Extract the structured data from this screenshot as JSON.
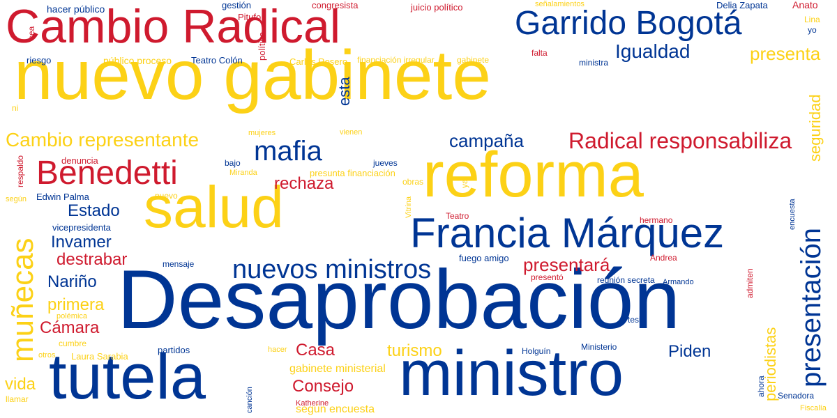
{
  "palette": {
    "red": "#cf1a2e",
    "yellow": "#fcd116",
    "blue": "#003594"
  },
  "words": [
    {
      "text": "Desaprobación",
      "color": "blue",
      "rotate": false
    },
    {
      "text": "nuevo gabinete",
      "color": "yellow",
      "rotate": false
    },
    {
      "text": "ministro",
      "color": "blue",
      "rotate": false
    },
    {
      "text": "reforma",
      "color": "yellow",
      "rotate": false
    },
    {
      "text": "tutela",
      "color": "blue",
      "rotate": false
    },
    {
      "text": "Cambio Radical",
      "color": "red",
      "rotate": false
    },
    {
      "text": "salud",
      "color": "yellow",
      "rotate": false
    },
    {
      "text": "Francia Márquez",
      "color": "blue",
      "rotate": false
    },
    {
      "text": "Garrido Bogotá",
      "color": "blue",
      "rotate": false
    },
    {
      "text": "Benedetti",
      "color": "red",
      "rotate": false
    },
    {
      "text": "presentación",
      "color": "blue",
      "rotate": true
    },
    {
      "text": "muñecas",
      "color": "yellow",
      "rotate": true
    },
    {
      "text": "mafia",
      "color": "blue",
      "rotate": false
    },
    {
      "text": "nuevos ministros",
      "color": "blue",
      "rotate": false
    },
    {
      "text": "Radical responsabiliza",
      "color": "red",
      "rotate": false
    },
    {
      "text": "Cambio representante",
      "color": "yellow",
      "rotate": false
    },
    {
      "text": "presentará",
      "color": "red",
      "rotate": false
    },
    {
      "text": "Igualdad",
      "color": "blue",
      "rotate": false
    },
    {
      "text": "presenta",
      "color": "yellow",
      "rotate": false
    },
    {
      "text": "campaña",
      "color": "blue",
      "rotate": false
    },
    {
      "text": "rechaza",
      "color": "red",
      "rotate": false
    },
    {
      "text": "Estado",
      "color": "blue",
      "rotate": false
    },
    {
      "text": "Invamer",
      "color": "blue",
      "rotate": false
    },
    {
      "text": "destrabar",
      "color": "red",
      "rotate": false
    },
    {
      "text": "Nariño",
      "color": "blue",
      "rotate": false
    },
    {
      "text": "primera",
      "color": "yellow",
      "rotate": false
    },
    {
      "text": "Cámara",
      "color": "red",
      "rotate": false
    },
    {
      "text": "Casa",
      "color": "red",
      "rotate": false
    },
    {
      "text": "turismo",
      "color": "yellow",
      "rotate": false
    },
    {
      "text": "Consejo",
      "color": "red",
      "rotate": false
    },
    {
      "text": "Piden",
      "color": "blue",
      "rotate": false
    },
    {
      "text": "periodistas",
      "color": "yellow",
      "rotate": true
    },
    {
      "text": "seguridad",
      "color": "yellow",
      "rotate": true
    },
    {
      "text": "esta",
      "color": "blue",
      "rotate": true
    },
    {
      "text": "vida",
      "color": "yellow",
      "rotate": false
    },
    {
      "text": "gabinete ministerial",
      "color": "yellow",
      "rotate": false
    },
    {
      "text": "según encuesta",
      "color": "yellow",
      "rotate": false
    },
    {
      "text": "Laura Sarabia",
      "color": "yellow",
      "rotate": false
    },
    {
      "text": "hacer público",
      "color": "blue",
      "rotate": false
    },
    {
      "text": "gestión",
      "color": "blue",
      "rotate": false
    },
    {
      "text": "congresista",
      "color": "red",
      "rotate": false
    },
    {
      "text": "juicio político",
      "color": "red",
      "rotate": false
    },
    {
      "text": "señalamientos",
      "color": "yellow",
      "rotate": false
    },
    {
      "text": "Delia Zapata",
      "color": "blue",
      "rotate": false
    },
    {
      "text": "Anato",
      "color": "red",
      "rotate": false
    },
    {
      "text": "Pitufo",
      "color": "red",
      "rotate": false
    },
    {
      "text": "sea",
      "color": "red",
      "rotate": true
    },
    {
      "text": "política",
      "color": "red",
      "rotate": true
    },
    {
      "text": "Lina",
      "color": "yellow",
      "rotate": false
    },
    {
      "text": "yo",
      "color": "blue",
      "rotate": false
    },
    {
      "text": "riesgo",
      "color": "blue",
      "rotate": false
    },
    {
      "text": "público proceso",
      "color": "yellow",
      "rotate": false
    },
    {
      "text": "Teatro Colón",
      "color": "blue",
      "rotate": false
    },
    {
      "text": "Carlos Rosero",
      "color": "yellow",
      "rotate": false
    },
    {
      "text": "financiación irregular",
      "color": "yellow",
      "rotate": false
    },
    {
      "text": "gabinete",
      "color": "yellow",
      "rotate": false
    },
    {
      "text": "falta",
      "color": "red",
      "rotate": false
    },
    {
      "text": "ministra",
      "color": "blue",
      "rotate": false
    },
    {
      "text": "ni",
      "color": "yellow",
      "rotate": false
    },
    {
      "text": "mujeres",
      "color": "yellow",
      "rotate": false
    },
    {
      "text": "vienen",
      "color": "yellow",
      "rotate": false
    },
    {
      "text": "denuncia",
      "color": "red",
      "rotate": false
    },
    {
      "text": "bajo",
      "color": "blue",
      "rotate": false
    },
    {
      "text": "jueves",
      "color": "blue",
      "rotate": false
    },
    {
      "text": "respaldo",
      "color": "red",
      "rotate": true
    },
    {
      "text": "Miranda",
      "color": "yellow",
      "rotate": false
    },
    {
      "text": "presunta financiación",
      "color": "yellow",
      "rotate": false
    },
    {
      "text": "ya",
      "color": "yellow",
      "rotate": true
    },
    {
      "text": "Edwin Palma",
      "color": "blue",
      "rotate": false
    },
    {
      "text": "nuevo",
      "color": "yellow",
      "rotate": false
    },
    {
      "text": "obras",
      "color": "yellow",
      "rotate": false
    },
    {
      "text": "según",
      "color": "yellow",
      "rotate": false
    },
    {
      "text": "Vitrina",
      "color": "yellow",
      "rotate": true
    },
    {
      "text": "Teatro",
      "color": "red",
      "rotate": false
    },
    {
      "text": "hermano",
      "color": "red",
      "rotate": false
    },
    {
      "text": "encuesta",
      "color": "blue",
      "rotate": true
    },
    {
      "text": "vicepresidenta",
      "color": "blue",
      "rotate": false
    },
    {
      "text": "mensaje",
      "color": "blue",
      "rotate": false
    },
    {
      "text": "fuego amigo",
      "color": "blue",
      "rotate": false
    },
    {
      "text": "Andrea",
      "color": "red",
      "rotate": false
    },
    {
      "text": "presentó",
      "color": "red",
      "rotate": false
    },
    {
      "text": "reunión secreta",
      "color": "blue",
      "rotate": false
    },
    {
      "text": "Armando",
      "color": "blue",
      "rotate": false
    },
    {
      "text": "admiten",
      "color": "red",
      "rotate": true
    },
    {
      "text": "polémica",
      "color": "yellow",
      "rotate": false
    },
    {
      "text": "tesis",
      "color": "blue",
      "rotate": false
    },
    {
      "text": "cumbre",
      "color": "yellow",
      "rotate": false
    },
    {
      "text": "partidos",
      "color": "blue",
      "rotate": false
    },
    {
      "text": "hacer",
      "color": "yellow",
      "rotate": false
    },
    {
      "text": "Holguín",
      "color": "blue",
      "rotate": false
    },
    {
      "text": "Ministerio",
      "color": "blue",
      "rotate": false
    },
    {
      "text": "otros",
      "color": "yellow",
      "rotate": false
    },
    {
      "text": "ahora",
      "color": "blue",
      "rotate": true
    },
    {
      "text": "Senadora",
      "color": "blue",
      "rotate": false
    },
    {
      "text": "llamar",
      "color": "yellow",
      "rotate": false
    },
    {
      "text": "canción",
      "color": "blue",
      "rotate": true
    },
    {
      "text": "Katherine",
      "color": "red",
      "rotate": false
    },
    {
      "text": "Fiscalía",
      "color": "yellow",
      "rotate": false
    }
  ]
}
